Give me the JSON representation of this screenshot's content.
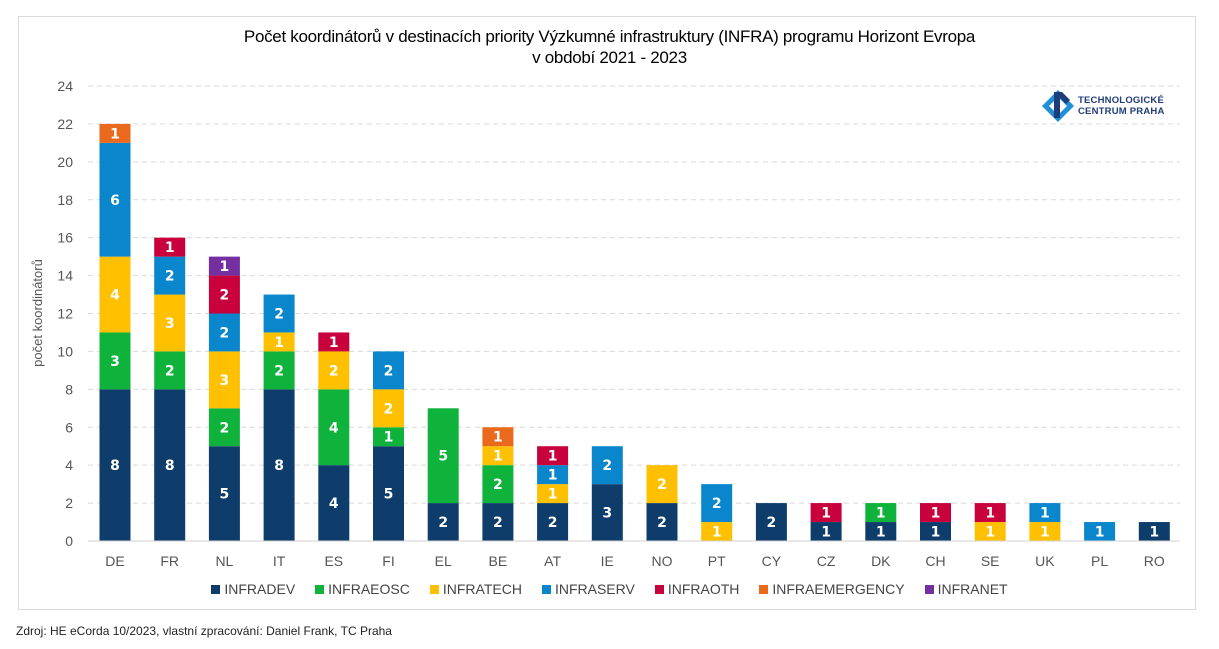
{
  "chart_data": {
    "type": "bar",
    "stacked": true,
    "title": "Počet koordinátorů v destinacích priority Výzkumné infrastruktury (INFRA) programu Horizont Evropa",
    "subtitle": "v období 2021 - 2023",
    "xlabel": "",
    "ylabel": "počet koordinátorů",
    "ylim": [
      0,
      24
    ],
    "yticks": [
      0,
      2,
      4,
      6,
      8,
      10,
      12,
      14,
      16,
      18,
      20,
      22,
      24
    ],
    "grid": true,
    "legend_position": "bottom",
    "categories": [
      "DE",
      "FR",
      "NL",
      "IT",
      "ES",
      "FI",
      "EL",
      "BE",
      "AT",
      "IE",
      "NO",
      "PT",
      "CY",
      "CZ",
      "DK",
      "CH",
      "SE",
      "UK",
      "PL",
      "RO"
    ],
    "series": [
      {
        "name": "INFRADEV",
        "color": "#0e3d6b",
        "values": [
          8,
          8,
          5,
          8,
          4,
          5,
          2,
          2,
          2,
          3,
          2,
          0,
          2,
          1,
          1,
          1,
          0,
          0,
          0,
          1
        ]
      },
      {
        "name": "INFRAEOSC",
        "color": "#0fb33c",
        "values": [
          3,
          2,
          2,
          2,
          4,
          1,
          5,
          2,
          0,
          0,
          0,
          0,
          0,
          0,
          1,
          0,
          0,
          0,
          0,
          0
        ]
      },
      {
        "name": "INFRATECH",
        "color": "#ffc000",
        "values": [
          4,
          3,
          3,
          1,
          2,
          2,
          0,
          1,
          1,
          0,
          2,
          1,
          0,
          0,
          0,
          0,
          1,
          1,
          0,
          0
        ]
      },
      {
        "name": "INFRASERV",
        "color": "#0a86cc",
        "values": [
          6,
          2,
          2,
          2,
          0,
          2,
          0,
          0,
          1,
          2,
          0,
          2,
          0,
          0,
          0,
          0,
          0,
          1,
          1,
          0
        ]
      },
      {
        "name": "INFRAOTH",
        "color": "#c8003c",
        "values": [
          0,
          1,
          2,
          0,
          1,
          0,
          0,
          0,
          1,
          0,
          0,
          0,
          0,
          1,
          0,
          1,
          1,
          0,
          0,
          0
        ]
      },
      {
        "name": "INFRAEMERGENCY",
        "color": "#e96a1c",
        "values": [
          1,
          0,
          0,
          0,
          0,
          0,
          0,
          1,
          0,
          0,
          0,
          0,
          0,
          0,
          0,
          0,
          0,
          0,
          0,
          0
        ]
      },
      {
        "name": "INFRANET",
        "color": "#7430a0",
        "values": [
          0,
          0,
          1,
          0,
          0,
          0,
          0,
          0,
          0,
          0,
          0,
          0,
          0,
          0,
          0,
          0,
          0,
          0,
          0,
          0
        ]
      }
    ]
  },
  "logo": {
    "line1": "TECHNOLOGICKÉ",
    "line2": "CENTRUM PRAHA"
  },
  "source": "Zdroj: HE eCorda 10/2023, vlastní zpracování: Daniel Frank, TC Praha"
}
